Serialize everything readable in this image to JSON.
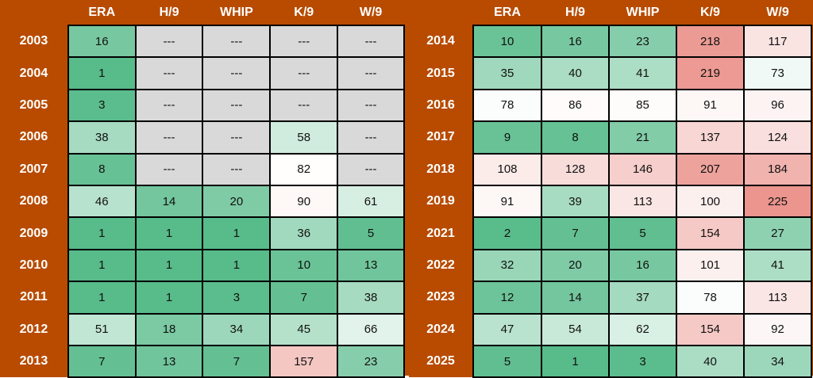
{
  "colors": {
    "frame": "#b84b00",
    "header_text": "#ffffff",
    "best": "#57bb8a",
    "mid": "#ffffff",
    "worst": "#e67c73",
    "no_data": "#d9d9d9"
  },
  "headers": [
    "ERA",
    "H/9",
    "WHIP",
    "K/9",
    "W/9"
  ],
  "left_table": {
    "rows": [
      {
        "year": "2003",
        "values": [
          "16",
          "---",
          "---",
          "---",
          "---"
        ]
      },
      {
        "year": "2004",
        "values": [
          "1",
          "---",
          "---",
          "---",
          "---"
        ]
      },
      {
        "year": "2005",
        "values": [
          "3",
          "---",
          "---",
          "---",
          "---"
        ]
      },
      {
        "year": "2006",
        "values": [
          "38",
          "---",
          "---",
          "58",
          "---"
        ]
      },
      {
        "year": "2007",
        "values": [
          "8",
          "---",
          "---",
          "82",
          "---"
        ]
      },
      {
        "year": "2008",
        "values": [
          "46",
          "14",
          "20",
          "90",
          "61"
        ]
      },
      {
        "year": "2009",
        "values": [
          "1",
          "1",
          "1",
          "36",
          "5"
        ]
      },
      {
        "year": "2010",
        "values": [
          "1",
          "1",
          "1",
          "10",
          "13"
        ]
      },
      {
        "year": "2011",
        "values": [
          "1",
          "1",
          "3",
          "7",
          "38"
        ]
      },
      {
        "year": "2012",
        "values": [
          "51",
          "18",
          "34",
          "45",
          "66"
        ]
      },
      {
        "year": "2013",
        "values": [
          "7",
          "13",
          "7",
          "157",
          "23"
        ]
      }
    ]
  },
  "right_table": {
    "rows": [
      {
        "year": "2014",
        "values": [
          "10",
          "16",
          "23",
          "218",
          "117"
        ]
      },
      {
        "year": "2015",
        "values": [
          "35",
          "40",
          "41",
          "219",
          "73"
        ]
      },
      {
        "year": "2016",
        "values": [
          "78",
          "86",
          "85",
          "91",
          "96"
        ]
      },
      {
        "year": "2017",
        "values": [
          "9",
          "8",
          "21",
          "137",
          "124"
        ]
      },
      {
        "year": "2018",
        "values": [
          "108",
          "128",
          "146",
          "207",
          "184"
        ]
      },
      {
        "year": "2019",
        "values": [
          "91",
          "39",
          "113",
          "100",
          "225"
        ]
      },
      {
        "year": "2021",
        "values": [
          "2",
          "7",
          "5",
          "154",
          "27"
        ]
      },
      {
        "year": "2022",
        "values": [
          "32",
          "20",
          "16",
          "101",
          "41"
        ]
      },
      {
        "year": "2023",
        "values": [
          "12",
          "14",
          "37",
          "78",
          "113"
        ]
      },
      {
        "year": "2024",
        "values": [
          "47",
          "54",
          "62",
          "154",
          "92"
        ]
      },
      {
        "year": "2025",
        "values": [
          "5",
          "1",
          "3",
          "40",
          "34"
        ]
      }
    ]
  }
}
